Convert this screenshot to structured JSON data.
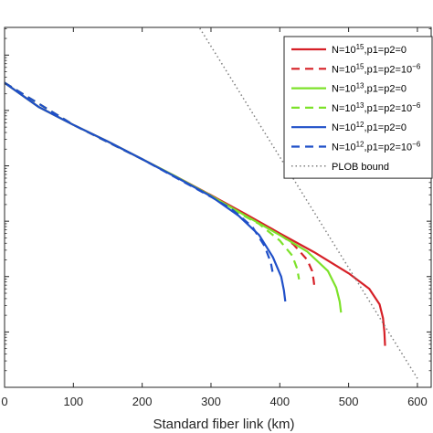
{
  "chart_data": {
    "type": "line",
    "xlabel": "Standard fiber link (km)",
    "ylabel": "",
    "title": "",
    "xlim": [
      0,
      620
    ],
    "x_ticks": [
      0,
      100,
      200,
      300,
      400,
      500,
      600
    ],
    "x_tick_labels": [
      "0",
      "100",
      "200",
      "300",
      "400",
      "500",
      "600"
    ],
    "y_log_scale": true,
    "ylim_log10": [
      -12,
      -5.5
    ],
    "grid": false,
    "legend_position": "top-right",
    "series": [
      {
        "name_base": "N=10",
        "name_exp": "15",
        "name_rest": ",p1=p2=0",
        "name_exp2": "",
        "color": "#d62027",
        "dash": "solid",
        "x": [
          0,
          50,
          100,
          150,
          200,
          250,
          300,
          350,
          400,
          450,
          500,
          530,
          545,
          550,
          552,
          553
        ],
        "log10_y": [
          -6.5,
          -6.94,
          -7.26,
          -7.56,
          -7.88,
          -8.2,
          -8.53,
          -8.87,
          -9.22,
          -9.56,
          -9.94,
          -10.22,
          -10.5,
          -10.75,
          -11.0,
          -11.25
        ]
      },
      {
        "name_base": "N=10",
        "name_exp": "15",
        "name_rest": ",p1=p2=10",
        "name_exp2": "−6",
        "color": "#d62027",
        "dash": "dashed",
        "x": [
          0,
          100,
          200,
          300,
          350,
          390,
          420,
          440,
          447,
          449,
          450
        ],
        "log10_y": [
          -6.5,
          -7.26,
          -7.88,
          -8.53,
          -8.88,
          -9.15,
          -9.42,
          -9.7,
          -9.9,
          -10.05,
          -10.15
        ]
      },
      {
        "name_base": "N=10",
        "name_exp": "13",
        "name_rest": ",p1=p2=0",
        "name_exp2": "",
        "color": "#7de22a",
        "dash": "solid",
        "x": [
          0,
          50,
          100,
          150,
          200,
          250,
          300,
          350,
          400,
          440,
          470,
          482,
          487,
          489
        ],
        "log10_y": [
          -6.5,
          -6.94,
          -7.26,
          -7.56,
          -7.88,
          -8.2,
          -8.54,
          -8.9,
          -9.25,
          -9.55,
          -9.9,
          -10.2,
          -10.45,
          -10.65
        ]
      },
      {
        "name_base": "N=10",
        "name_exp": "13",
        "name_rest": ",p1=p2=10",
        "name_exp2": "−6",
        "color": "#7de22a",
        "dash": "dashed",
        "x": [
          0,
          100,
          200,
          300,
          340,
          370,
          400,
          418,
          425,
          428
        ],
        "log10_y": [
          -6.5,
          -7.26,
          -7.88,
          -8.54,
          -8.85,
          -9.05,
          -9.35,
          -9.62,
          -9.85,
          -10.05
        ]
      },
      {
        "name_base": "N=10",
        "name_exp": "12",
        "name_rest": ",p1=p2=0",
        "name_exp2": "",
        "color": "#1f4fc8",
        "dash": "solid",
        "x": [
          0,
          50,
          100,
          150,
          200,
          250,
          300,
          340,
          370,
          390,
          402,
          406,
          408
        ],
        "log10_y": [
          -6.5,
          -6.94,
          -7.26,
          -7.56,
          -7.88,
          -8.21,
          -8.55,
          -8.9,
          -9.25,
          -9.65,
          -10.0,
          -10.25,
          -10.45
        ]
      },
      {
        "name_base": "N=10",
        "name_exp": "12",
        "name_rest": ",p1=p2=10",
        "name_exp2": "−6",
        "color": "#1f4fc8",
        "dash": "dashed",
        "x": [
          0,
          100,
          200,
          300,
          330,
          360,
          378,
          387,
          390
        ],
        "log10_y": [
          -6.5,
          -7.26,
          -7.88,
          -8.56,
          -8.78,
          -9.1,
          -9.45,
          -9.75,
          -9.95
        ]
      },
      {
        "name_base": "PLOB bound",
        "name_exp": "",
        "name_rest": "",
        "name_exp2": "",
        "color": "#7f7f7f",
        "dash": "dotted",
        "x": [
          0,
          600
        ],
        "log10_y": [
          0.16,
          -11.84
        ]
      }
    ]
  }
}
